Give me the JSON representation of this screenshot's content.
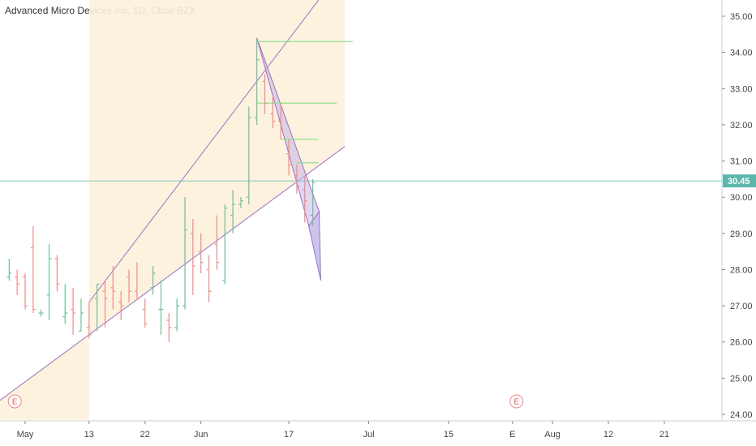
{
  "chart_data": {
    "type": "ohlc",
    "title": "Advanced Micro Devices Inc, 1D, Cboe BZX",
    "last_price": 30.45,
    "ylim": [
      24.0,
      35.0
    ],
    "yticks": [
      24.0,
      25.0,
      26.0,
      27.0,
      28.0,
      29.0,
      30.0,
      31.0,
      32.0,
      33.0,
      34.0,
      35.0
    ],
    "xticks": [
      {
        "label": "May",
        "day": 0
      },
      {
        "label": "13",
        "day": 8
      },
      {
        "label": "22",
        "day": 15
      },
      {
        "label": "Jun",
        "day": 22
      },
      {
        "label": "17",
        "day": 33
      },
      {
        "label": "Jul",
        "day": 43
      },
      {
        "label": "15",
        "day": 53
      },
      {
        "label": "E",
        "day": 61
      },
      {
        "label": "Aug",
        "day": 66
      },
      {
        "label": "12",
        "day": 73
      },
      {
        "label": "21",
        "day": 80
      }
    ],
    "earnings_markers": [
      {
        "label": "E",
        "day": -1.3
      },
      {
        "label": "E",
        "day": 61.5
      }
    ],
    "bars": [
      {
        "day": -2,
        "o": 27.8,
        "h": 28.3,
        "l": 27.7,
        "c": 27.9
      },
      {
        "day": -1,
        "o": 27.8,
        "h": 28.0,
        "l": 27.3,
        "c": 27.6
      },
      {
        "day": 0,
        "o": 27.8,
        "h": 27.9,
        "l": 26.9,
        "c": 27.0
      },
      {
        "day": 1,
        "o": 28.6,
        "h": 29.2,
        "l": 26.8,
        "c": 26.9
      },
      {
        "day": 2,
        "o": 26.8,
        "h": 26.9,
        "l": 26.7,
        "c": 26.8
      },
      {
        "day": 3,
        "o": 27.3,
        "h": 28.7,
        "l": 26.6,
        "c": 28.3
      },
      {
        "day": 4,
        "o": 28.3,
        "h": 28.4,
        "l": 27.4,
        "c": 27.6
      },
      {
        "day": 5,
        "o": 26.7,
        "h": 27.6,
        "l": 26.5,
        "c": 26.8
      },
      {
        "day": 6,
        "o": 26.9,
        "h": 27.5,
        "l": 26.2,
        "c": 26.8
      },
      {
        "day": 7,
        "o": 26.3,
        "h": 27.2,
        "l": 26.3,
        "c": 26.8
      },
      {
        "day": 8,
        "o": 26.4,
        "h": 27.1,
        "l": 26.1,
        "c": 26.2
      },
      {
        "day": 9,
        "o": 27.2,
        "h": 27.6,
        "l": 26.3,
        "c": 27.6
      },
      {
        "day": 10,
        "o": 27.4,
        "h": 27.7,
        "l": 26.4,
        "c": 27.2
      },
      {
        "day": 11,
        "o": 27.5,
        "h": 28.1,
        "l": 26.9,
        "c": 27.4
      },
      {
        "day": 12,
        "o": 27.1,
        "h": 27.4,
        "l": 26.6,
        "c": 27.0
      },
      {
        "day": 13,
        "o": 27.8,
        "h": 28.0,
        "l": 27.1,
        "c": 27.4
      },
      {
        "day": 14,
        "o": 27.4,
        "h": 28.2,
        "l": 27.2,
        "c": 27.2
      },
      {
        "day": 15,
        "o": 26.9,
        "h": 27.2,
        "l": 26.4,
        "c": 26.5
      },
      {
        "day": 16,
        "o": 27.5,
        "h": 28.1,
        "l": 27.3,
        "c": 27.9
      },
      {
        "day": 17,
        "o": 26.9,
        "h": 27.7,
        "l": 26.2,
        "c": 26.9
      },
      {
        "day": 18,
        "o": 26.6,
        "h": 26.8,
        "l": 26.0,
        "c": 26.4
      },
      {
        "day": 19,
        "o": 26.4,
        "h": 27.2,
        "l": 26.3,
        "c": 27.0
      },
      {
        "day": 20,
        "o": 27.0,
        "h": 30.0,
        "l": 26.9,
        "c": 29.1
      },
      {
        "day": 21,
        "o": 29.0,
        "h": 29.4,
        "l": 27.3,
        "c": 28.1
      },
      {
        "day": 22,
        "o": 28.5,
        "h": 29.0,
        "l": 27.9,
        "c": 28.2
      },
      {
        "day": 23,
        "o": 28.0,
        "h": 28.4,
        "l": 27.1,
        "c": 27.4
      },
      {
        "day": 24,
        "o": 28.7,
        "h": 29.5,
        "l": 28.0,
        "c": 28.2
      },
      {
        "day": 25,
        "o": 27.7,
        "h": 29.8,
        "l": 27.6,
        "c": 29.7
      },
      {
        "day": 26,
        "o": 29.5,
        "h": 30.2,
        "l": 29.0,
        "c": 29.8
      },
      {
        "day": 27,
        "o": 29.8,
        "h": 30.0,
        "l": 29.7,
        "c": 29.9
      },
      {
        "day": 28,
        "o": 30.0,
        "h": 32.5,
        "l": 29.8,
        "c": 32.2
      },
      {
        "day": 29,
        "o": 32.2,
        "h": 34.4,
        "l": 32.0,
        "c": 33.8
      },
      {
        "day": 30,
        "o": 33.2,
        "h": 33.4,
        "l": 32.3,
        "c": 32.6
      },
      {
        "day": 31,
        "o": 32.3,
        "h": 32.8,
        "l": 31.9,
        "c": 32.1
      },
      {
        "day": 32,
        "o": 32.1,
        "h": 32.6,
        "l": 31.6,
        "c": 31.9
      },
      {
        "day": 33,
        "o": 31.2,
        "h": 31.6,
        "l": 30.6,
        "c": 30.9
      },
      {
        "day": 34,
        "o": 30.6,
        "h": 30.9,
        "l": 30.1,
        "c": 30.3
      },
      {
        "day": 35,
        "o": 30.2,
        "h": 30.6,
        "l": 29.3,
        "c": 29.9
      },
      {
        "day": 36,
        "o": 29.5,
        "h": 30.5,
        "l": 29.2,
        "c": 30.4
      }
    ],
    "horizontal_levels": [
      {
        "price": 34.3,
        "day_start": 29,
        "day_end": 41
      },
      {
        "price": 32.6,
        "day_start": 29,
        "day_end": 39
      },
      {
        "price": 31.6,
        "day_start": 32,
        "day_end": 36.7
      },
      {
        "price": 30.95,
        "day_start": 34,
        "day_end": 36.7
      }
    ],
    "channel": {
      "lower_start": {
        "day": 8,
        "price": 26.2
      },
      "lower_end": {
        "day": 40,
        "price": 31.4
      },
      "upper_start": {
        "day": 8,
        "price": 27.1
      },
      "upper_end": {
        "day": 40,
        "price": 36.4
      },
      "fill_from_day": 8,
      "fill_to_day": 40
    },
    "flag": {
      "p1": {
        "day": 29,
        "price": 34.4
      },
      "p2": {
        "day": 36.8,
        "price": 29.6
      },
      "p3": {
        "day": 35.5,
        "price": 29.2
      },
      "p4": {
        "day": 37,
        "price": 27.7
      }
    }
  }
}
